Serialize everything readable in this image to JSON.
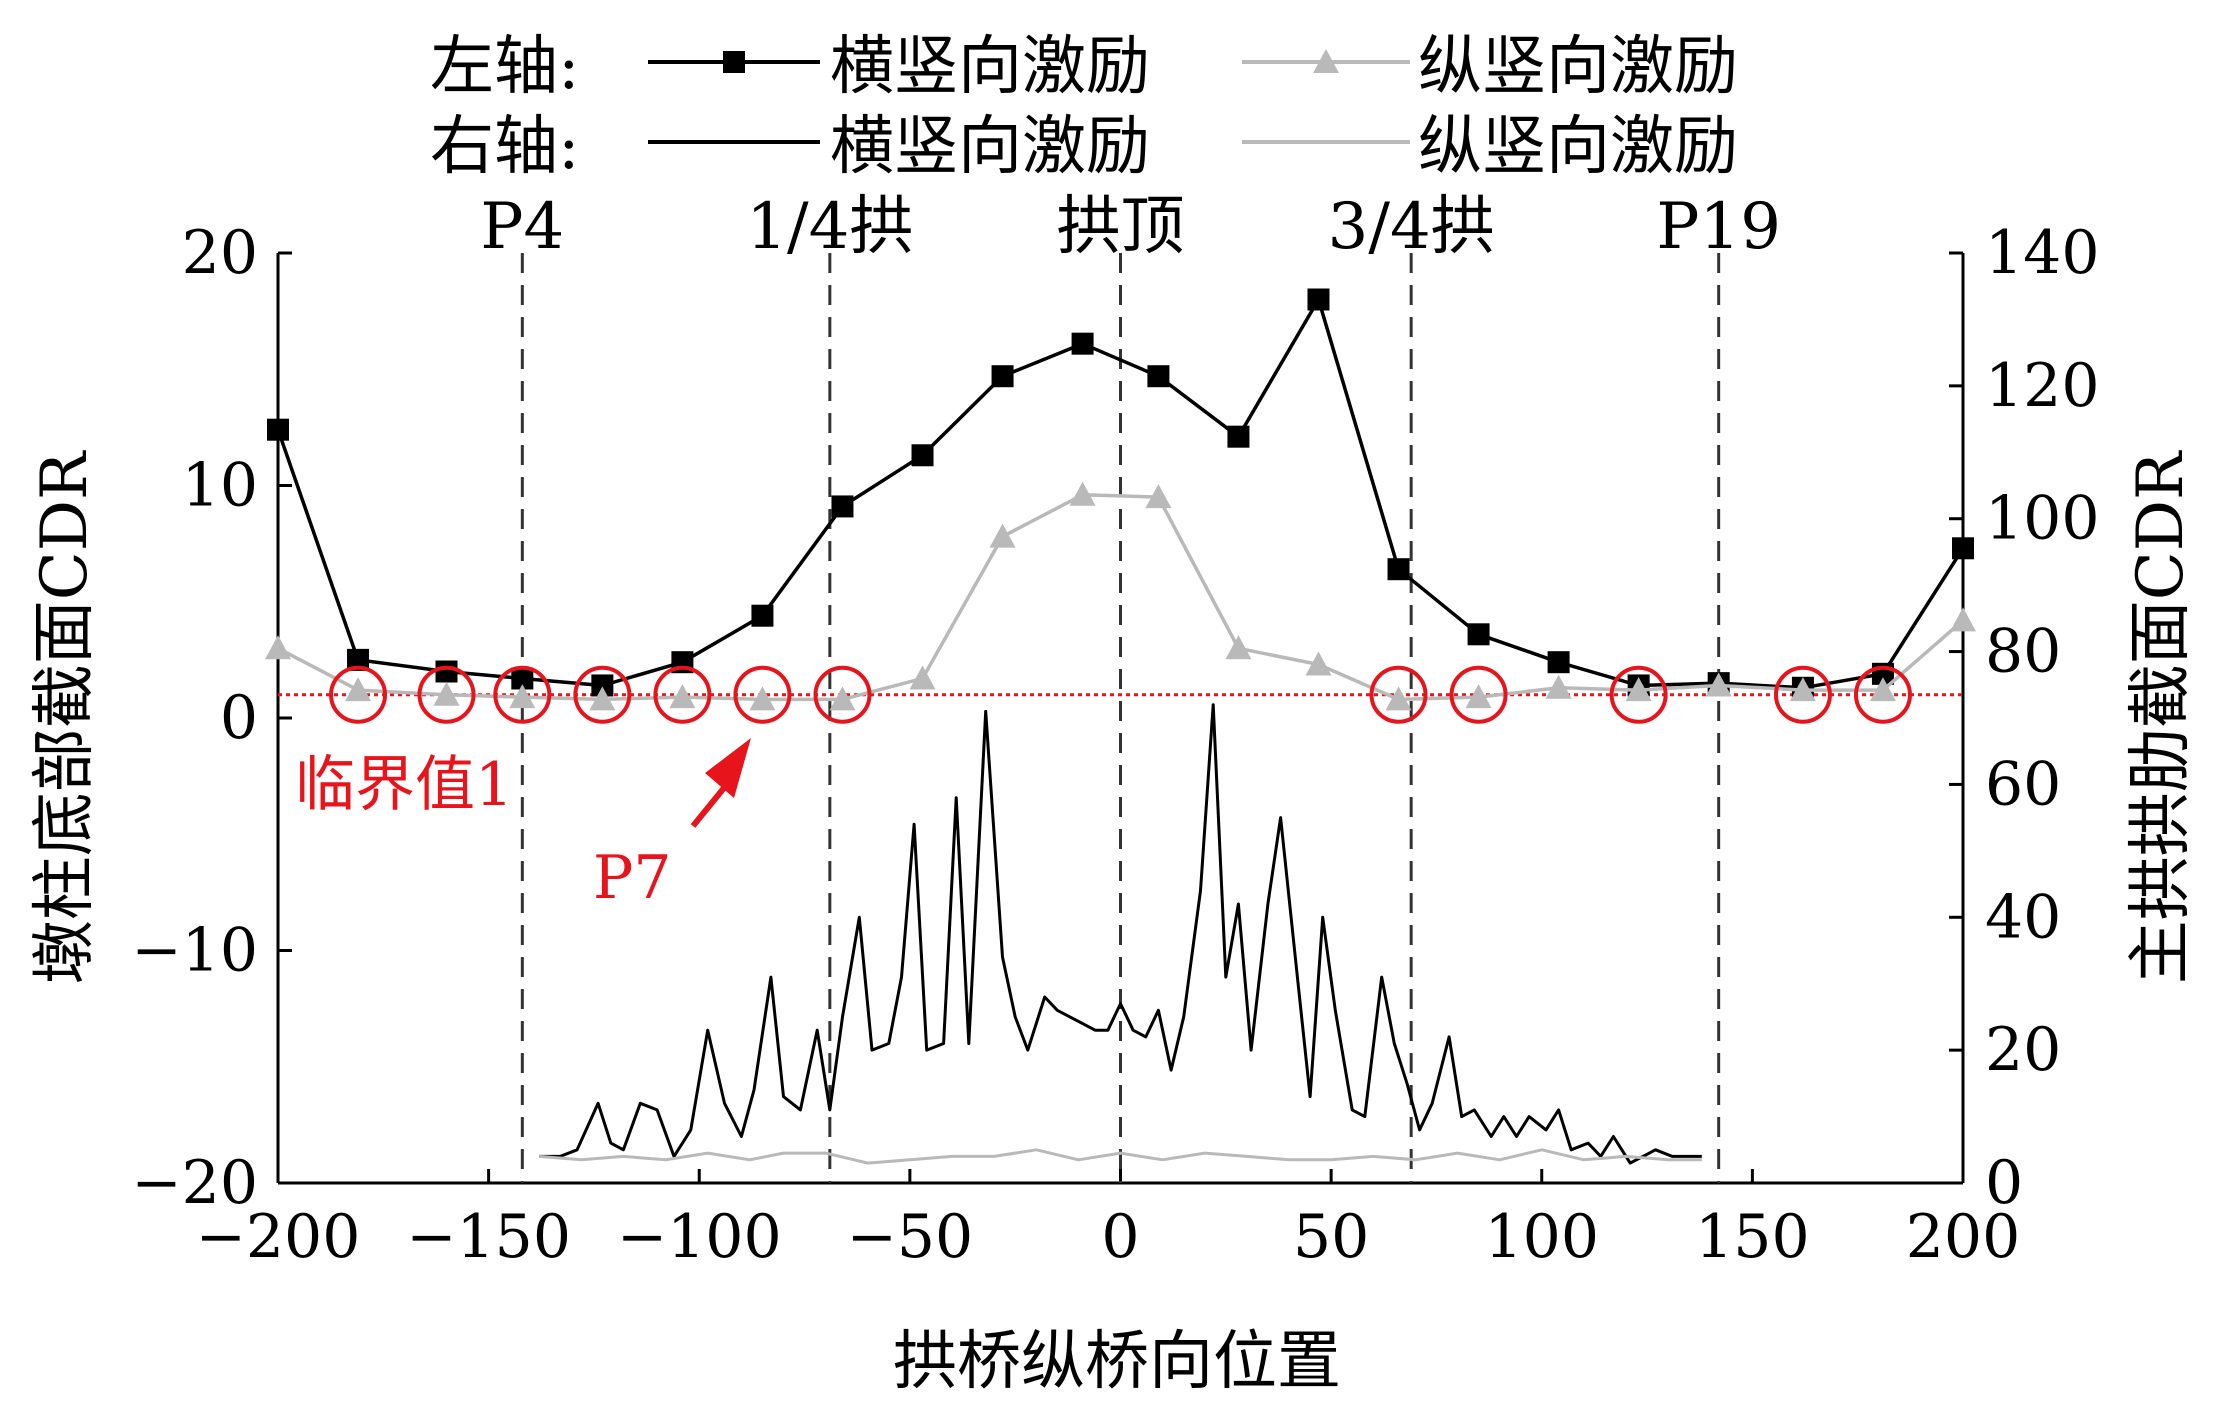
{
  "chart_data": {
    "type": "line",
    "xlabel": "拱桥纵桥向位置",
    "ylabel_left": "墩柱底部截面CDR",
    "ylabel_right": "主拱拱肋截面CDR",
    "xlim": [
      -200,
      200
    ],
    "ylim_left": [
      -20,
      20
    ],
    "ylim_right": [
      0,
      140
    ],
    "xticks": [
      "−200",
      "−150",
      "−100",
      "−50",
      "0",
      "50",
      "100",
      "150",
      "200"
    ],
    "yticks_left": [
      "20",
      "10",
      "0",
      "−10",
      "−20"
    ],
    "yticks_right": [
      "140",
      "120",
      "100",
      "80",
      "60",
      "40",
      "20",
      "0"
    ],
    "legend": {
      "left_axis_label": "左轴:",
      "right_axis_label": "右轴:",
      "series_names": [
        "横竖向激励",
        "纵竖向激励",
        "横竖向激励",
        "纵竖向激励"
      ]
    },
    "position_markers": [
      {
        "label": "P4",
        "x": -142
      },
      {
        "label": "1/4拱",
        "x": -69
      },
      {
        "label": "拱顶",
        "x": 0
      },
      {
        "label": "3/4拱",
        "x": 69
      },
      {
        "label": "P19",
        "x": 142
      }
    ],
    "threshold": {
      "label": "临界值1",
      "value": 1
    },
    "arrow_annotation": {
      "label": "P7",
      "x": -85,
      "y": 1
    },
    "series": [
      {
        "axis": "left",
        "color": "#000000",
        "marker": "square",
        "x": [
          -200,
          -181,
          -160,
          -142,
          -123,
          -104,
          -85,
          -66,
          -47,
          -28,
          -9,
          9,
          28,
          47,
          66,
          85,
          104,
          123,
          142,
          162,
          181,
          200
        ],
        "y": [
          12.4,
          2.5,
          2.0,
          1.7,
          1.4,
          2.4,
          4.4,
          9.1,
          11.3,
          14.7,
          16.1,
          14.7,
          12.1,
          18.0,
          6.4,
          3.6,
          2.4,
          1.4,
          1.5,
          1.3,
          1.9,
          7.3
        ]
      },
      {
        "axis": "left",
        "color": "#b9b9b9",
        "marker": "triangle",
        "x": [
          -200,
          -181,
          -160,
          -142,
          -123,
          -104,
          -85,
          -66,
          -47,
          -28,
          -9,
          9,
          28,
          47,
          66,
          85,
          104,
          123,
          142,
          162,
          181,
          200
        ],
        "y": [
          3.0,
          1.2,
          1.0,
          0.9,
          0.8,
          0.9,
          0.8,
          0.8,
          1.7,
          7.8,
          9.6,
          9.5,
          3.0,
          2.3,
          0.8,
          0.9,
          1.3,
          1.2,
          1.4,
          1.2,
          1.2,
          4.2
        ]
      },
      {
        "axis": "right",
        "color": "#000000",
        "marker": "none",
        "x": [
          -138,
          -133,
          -129,
          -124,
          -121,
          -118,
          -114,
          -110,
          -106,
          -102,
          -98,
          -94,
          -90,
          -87,
          -83,
          -80,
          -76,
          -72,
          -69,
          -66,
          -62,
          -59,
          -55,
          -52,
          -49,
          -46,
          -42,
          -39,
          -36,
          -32,
          -28,
          -25,
          -22,
          -18,
          -15,
          -12,
          -9,
          -6,
          -3,
          0,
          3,
          6,
          9,
          12,
          15,
          19,
          22,
          25,
          28,
          31,
          35,
          38,
          42,
          45,
          48,
          51,
          55,
          58,
          62,
          65,
          68,
          71,
          74,
          78,
          81,
          84,
          88,
          91,
          94,
          97,
          101,
          104,
          107,
          111,
          114,
          117,
          121,
          124,
          127,
          131,
          134,
          138
        ],
        "y": [
          4,
          4,
          5,
          12,
          6,
          5,
          12,
          11,
          4,
          8,
          23,
          12,
          7,
          14,
          31,
          13,
          11,
          23,
          11,
          25,
          40,
          20,
          21,
          31,
          54,
          20,
          21,
          58,
          21,
          71,
          34,
          25,
          20,
          28,
          26,
          25,
          24,
          23,
          23,
          27,
          23,
          22,
          26,
          17,
          25,
          44,
          72,
          31,
          42,
          20,
          42,
          55,
          31,
          13,
          40,
          26,
          11,
          10,
          31,
          21,
          15,
          8,
          12,
          22,
          10,
          11,
          7,
          10,
          7,
          10,
          8,
          11,
          5,
          6,
          4,
          7,
          3,
          4,
          5,
          4,
          4,
          4
        ]
      },
      {
        "axis": "right",
        "color": "#b9b9b9",
        "marker": "none",
        "x": [
          -138,
          -128,
          -118,
          -108,
          -98,
          -88,
          -80,
          -70,
          -60,
          -50,
          -40,
          -30,
          -20,
          -10,
          0,
          10,
          20,
          30,
          40,
          50,
          60,
          70,
          80,
          90,
          100,
          110,
          120,
          130,
          138
        ],
        "y": [
          4,
          3.5,
          4,
          3.5,
          4.5,
          3.5,
          4.5,
          4.5,
          3,
          3.5,
          4,
          4,
          5,
          3.5,
          4.5,
          3.5,
          4.5,
          4,
          3.5,
          3.5,
          4,
          3.5,
          4.5,
          3.5,
          5,
          3.5,
          4,
          3.5,
          3.5
        ]
      }
    ]
  }
}
